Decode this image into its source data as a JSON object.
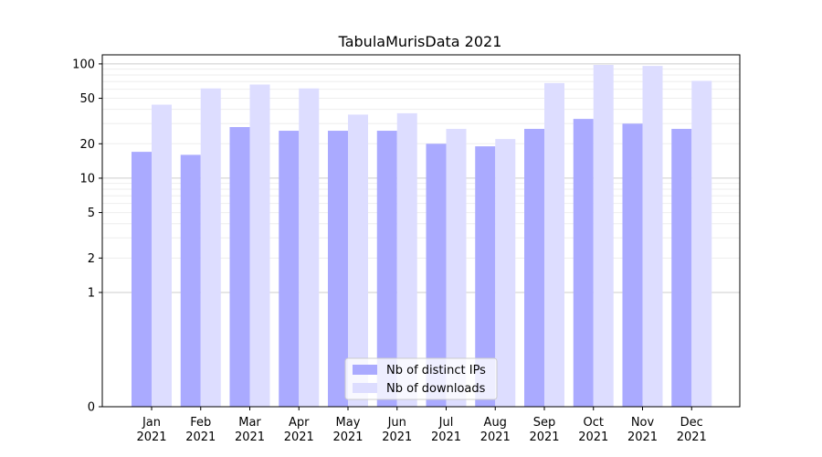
{
  "chart_data": {
    "type": "bar",
    "title": "TabulaMurisData 2021",
    "xlabel": "",
    "ylabel": "",
    "yscale": "symlog",
    "ylim": [
      0,
      120
    ],
    "yticks": [
      0,
      1,
      2,
      5,
      10,
      20,
      50,
      100
    ],
    "grid": true,
    "legend_position": "bottom-center",
    "categories": [
      [
        "Jan",
        "2021"
      ],
      [
        "Feb",
        "2021"
      ],
      [
        "Mar",
        "2021"
      ],
      [
        "Apr",
        "2021"
      ],
      [
        "May",
        "2021"
      ],
      [
        "Jun",
        "2021"
      ],
      [
        "Jul",
        "2021"
      ],
      [
        "Aug",
        "2021"
      ],
      [
        "Sep",
        "2021"
      ],
      [
        "Oct",
        "2021"
      ],
      [
        "Nov",
        "2021"
      ],
      [
        "Dec",
        "2021"
      ]
    ],
    "series": [
      {
        "name": "Nb of distinct IPs",
        "color": "#aaaaff",
        "values": [
          17,
          16,
          28,
          26,
          26,
          26,
          20,
          19,
          27,
          33,
          30,
          27
        ]
      },
      {
        "name": "Nb of downloads",
        "color": "#ddddff",
        "values": [
          44,
          61,
          66,
          61,
          36,
          37,
          27,
          22,
          68,
          98,
          96,
          71
        ]
      }
    ]
  }
}
